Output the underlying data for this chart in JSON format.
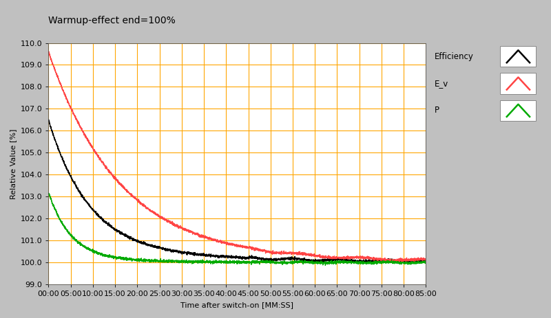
{
  "title": "Warmup-effect end=100%",
  "ylabel": "Relative Value [%]",
  "xlabel": "Time after switch-on [MM:SS]",
  "ylim": [
    99.0,
    110.0
  ],
  "xlim": [
    0,
    5100
  ],
  "yticks": [
    99.0,
    100.0,
    101.0,
    102.0,
    103.0,
    104.0,
    105.0,
    106.0,
    107.0,
    108.0,
    109.0,
    110.0
  ],
  "xticks": [
    0,
    300,
    600,
    900,
    1200,
    1500,
    1800,
    2100,
    2400,
    2700,
    3000,
    3300,
    3600,
    3900,
    4200,
    4500,
    4800,
    5100
  ],
  "xtick_labels": [
    "00:00",
    "05:00",
    "10:00",
    "15:00",
    "20:00",
    "25:00",
    "30:00",
    "35:00",
    "40:00",
    "45:00",
    "50:00",
    "55:00",
    "60:00",
    "65:00",
    "70:00",
    "75:00",
    "80:00",
    "85:00"
  ],
  "bg_color": "#c0c0c0",
  "plot_bg_color": "#ffffff",
  "grid_color": "#ffa500",
  "legend_labels": [
    "Efficiency",
    "E_v",
    "P"
  ],
  "line_colors": [
    "#000000",
    "#ff4444",
    "#00aa00"
  ],
  "title_fontsize": 10,
  "label_fontsize": 8,
  "tick_fontsize": 8,
  "efficiency_start": 106.0,
  "efficiency_tau1": 550,
  "efficiency_tau2": 2500,
  "efficiency_amp2": 0.5,
  "ev_start": 109.3,
  "ev_tau1": 950,
  "ev_tau2": 3500,
  "ev_amp2": 0.3,
  "p_start": 103.0,
  "p_tau1": 300,
  "p_tau2": 1200,
  "p_amp2": 0.2
}
